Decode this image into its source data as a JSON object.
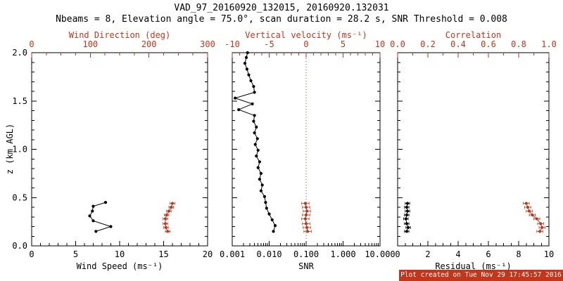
{
  "title": "VAD_97_20160920_132015, 20160920.132031",
  "subtitle": "Nbeams = 8, Elevation angle = 75.0°, scan duration = 28.2 s, SNR Threshold = 0.008",
  "ylabel": "z (km AGL)",
  "footer": {
    "text": "Plot created on Tue Nov 29 17:45:57 2016"
  },
  "colors": {
    "accent_red": "#c2361b",
    "black": "#000000",
    "footer_bg": "#c2361b",
    "footer_fg": "#ffffff"
  },
  "chart_data": [
    {
      "id": "wind",
      "type": "line",
      "y_axis": {
        "range": [
          0,
          2.0
        ],
        "ticks": [
          0.0,
          0.5,
          1.0,
          1.5,
          2.0
        ],
        "tick_labels": [
          "0.0",
          "0.5",
          "1.0",
          "1.5",
          "2.0"
        ],
        "minor": 0.1,
        "labeled": true,
        "label": "z (km AGL)"
      },
      "bottom_axis": {
        "label": "Wind Speed (ms⁻¹)",
        "scale": "linear",
        "range": [
          0,
          20
        ],
        "ticks": [
          0,
          5,
          10,
          15,
          20
        ],
        "tick_labels": [
          "0",
          "5",
          "10",
          "15",
          "20"
        ],
        "minor": 1
      },
      "top_axis": {
        "label": "Wind Direction (deg)",
        "scale": "linear",
        "range": [
          0,
          300
        ],
        "ticks": [
          0,
          100,
          200,
          300
        ],
        "tick_labels": [
          "0",
          "100",
          "200",
          "300"
        ],
        "minor": 25
      },
      "series": [
        {
          "name": "wind-speed",
          "axis": "bottom",
          "color": "black",
          "z": [
            0.15,
            0.2,
            0.26,
            0.31,
            0.36,
            0.41,
            0.45
          ],
          "values": [
            7.3,
            9.0,
            7.0,
            6.6,
            6.9,
            7.0,
            8.4
          ]
        },
        {
          "name": "wind-direction",
          "axis": "top",
          "color": "red",
          "xerr": 4,
          "z": [
            0.15,
            0.19,
            0.23,
            0.28,
            0.32,
            0.36,
            0.4,
            0.44
          ],
          "values": [
            232,
            229,
            228,
            228,
            230,
            234,
            238,
            240
          ]
        }
      ]
    },
    {
      "id": "snr",
      "type": "line",
      "y_axis": {
        "range": [
          0,
          2.0
        ],
        "ticks": [
          0.0,
          0.5,
          1.0,
          1.5,
          2.0
        ],
        "tick_labels": [],
        "minor": 0.1,
        "labeled": false
      },
      "bottom_axis": {
        "label": "SNR",
        "scale": "log",
        "range": [
          0.001,
          10
        ],
        "ticks": [
          0.001,
          0.01,
          0.1,
          1,
          10
        ],
        "tick_labels": [
          "0.001",
          "0.010",
          "0.100",
          "1.000",
          "10.000"
        ]
      },
      "top_axis": {
        "label": "Vertical velocity (ms⁻¹)",
        "scale": "linear",
        "range": [
          -10,
          10
        ],
        "ticks": [
          -10,
          -5,
          0,
          5,
          10
        ],
        "tick_labels": [
          "-10",
          "-5",
          "0",
          "5",
          "10"
        ],
        "minor": 1
      },
      "refline": {
        "axis": "bottom",
        "value": 0.1,
        "style": "dotted",
        "color": "red"
      },
      "series": [
        {
          "name": "snr-profile",
          "axis": "bottom",
          "color": "black",
          "z": [
            0.15,
            0.21,
            0.27,
            0.33,
            0.39,
            0.45,
            0.51,
            0.57,
            0.63,
            0.69,
            0.75,
            0.81,
            0.87,
            0.93,
            0.99,
            1.05,
            1.11,
            1.17,
            1.23,
            1.29,
            1.35,
            1.41,
            1.47,
            1.53,
            1.59,
            1.65,
            1.71,
            1.77,
            1.83,
            1.89,
            1.95,
            2.0
          ],
          "values": [
            0.013,
            0.0145,
            0.012,
            0.01,
            0.0085,
            0.008,
            0.0075,
            0.006,
            0.0065,
            0.0055,
            0.006,
            0.005,
            0.0055,
            0.0045,
            0.005,
            0.0042,
            0.0048,
            0.004,
            0.0045,
            0.0038,
            0.004,
            0.0015,
            0.0035,
            0.0012,
            0.004,
            0.0038,
            0.0032,
            0.0028,
            0.0025,
            0.0022,
            0.0024,
            0.0026
          ]
        },
        {
          "name": "vertical-velocity",
          "axis": "top",
          "color": "red",
          "xerr": 0.5,
          "z": [
            0.15,
            0.19,
            0.23,
            0.28,
            0.32,
            0.36,
            0.4,
            0.44
          ],
          "values": [
            0.2,
            0.1,
            0.0,
            -0.1,
            0.0,
            0.1,
            0.0,
            -0.1
          ]
        }
      ]
    },
    {
      "id": "residual",
      "type": "line",
      "y_axis": {
        "range": [
          0,
          2.0
        ],
        "ticks": [
          0.0,
          0.5,
          1.0,
          1.5,
          2.0
        ],
        "tick_labels": [],
        "minor": 0.1,
        "labeled": false
      },
      "bottom_axis": {
        "label": "Residual (ms⁻¹)",
        "scale": "linear",
        "range": [
          0,
          10
        ],
        "ticks": [
          0,
          2,
          4,
          6,
          8,
          10
        ],
        "tick_labels": [
          "0",
          "2",
          "4",
          "6",
          "8",
          "10"
        ],
        "minor": 0.5
      },
      "top_axis": {
        "label": "Correlation",
        "scale": "linear",
        "range": [
          0,
          1
        ],
        "ticks": [
          0,
          0.2,
          0.4,
          0.6,
          0.8,
          1.0
        ],
        "tick_labels": [
          "0.0",
          "0.2",
          "0.4",
          "0.6",
          "0.8",
          "1.0"
        ],
        "minor": 0.1
      },
      "series": [
        {
          "name": "residual",
          "axis": "bottom",
          "color": "black",
          "xerr": 0.15,
          "z": [
            0.15,
            0.19,
            0.23,
            0.28,
            0.32,
            0.36,
            0.4,
            0.44
          ],
          "values": [
            0.6,
            0.7,
            0.6,
            0.55,
            0.6,
            0.65,
            0.6,
            0.65
          ]
        },
        {
          "name": "correlation",
          "axis": "top",
          "color": "red",
          "xerr": 0.02,
          "z": [
            0.15,
            0.19,
            0.23,
            0.28,
            0.32,
            0.36,
            0.4,
            0.44
          ],
          "values": [
            0.94,
            0.955,
            0.945,
            0.92,
            0.89,
            0.87,
            0.86,
            0.85
          ]
        }
      ]
    }
  ]
}
